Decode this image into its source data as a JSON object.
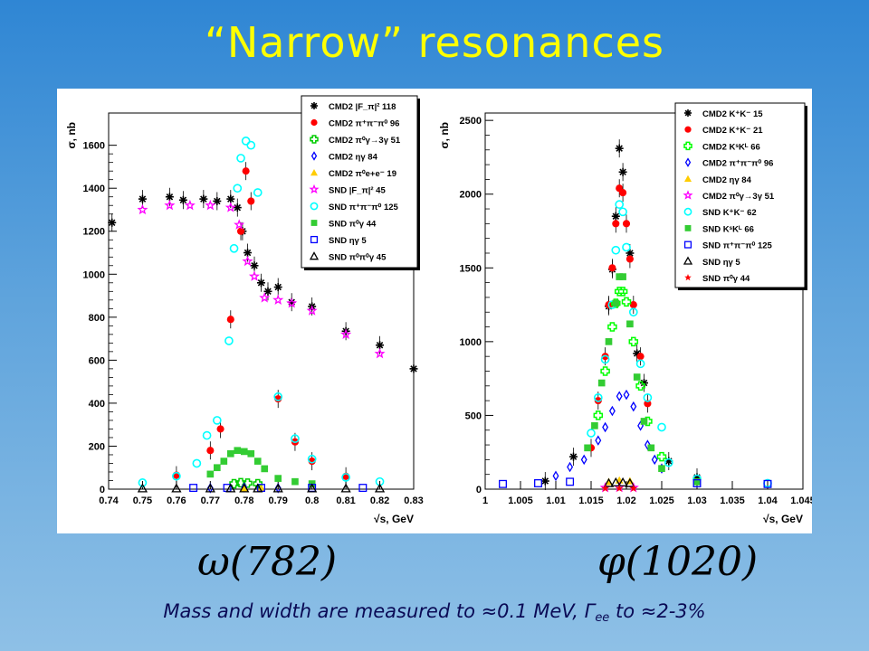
{
  "slide": {
    "title": "“Narrow” resonances",
    "caption_left": "ω(782)",
    "caption_right": "φ(1020)",
    "note_pre": "Mass and width are measured to ≈0.1 MeV, Γ",
    "note_sub": "ee",
    "note_post": " to ≈2-3%"
  },
  "chart_data": [
    {
      "type": "scatter",
      "xlabel": "√s, GeV",
      "ylabel": "σ, nb",
      "xlim": [
        0.74,
        0.83
      ],
      "ylim": [
        0,
        1750
      ],
      "xticks": [
        "0.74",
        "0.75",
        "0.76",
        "0.77",
        "0.78",
        "0.79",
        "0.8",
        "0.81",
        "0.82",
        "0.83"
      ],
      "yticks": [
        "0",
        "200",
        "400",
        "600",
        "800",
        "1000",
        "1200",
        "1400",
        "1600"
      ],
      "legend_position": "top-right",
      "series": [
        {
          "name": "CMD2 |F_π|² 118",
          "marker": "asterisk",
          "color": "#000000",
          "points": [
            [
              0.741,
              1240
            ],
            [
              0.75,
              1350
            ],
            [
              0.758,
              1360
            ],
            [
              0.762,
              1345
            ],
            [
              0.768,
              1350
            ],
            [
              0.772,
              1340
            ],
            [
              0.776,
              1350
            ],
            [
              0.778,
              1310
            ],
            [
              0.7795,
              1200
            ],
            [
              0.781,
              1100
            ],
            [
              0.783,
              1040
            ],
            [
              0.785,
              960
            ],
            [
              0.787,
              920
            ],
            [
              0.79,
              940
            ],
            [
              0.794,
              870
            ],
            [
              0.8,
              850
            ],
            [
              0.81,
              735
            ],
            [
              0.82,
              670
            ],
            [
              0.83,
              560
            ]
          ]
        },
        {
          "name": "CMD2 π⁺π⁻π⁰ 96",
          "marker": "circle",
          "color": "#ff0000",
          "points": [
            [
              0.76,
              65
            ],
            [
              0.77,
              180
            ],
            [
              0.773,
              280
            ],
            [
              0.776,
              790
            ],
            [
              0.779,
              1200
            ],
            [
              0.7805,
              1480
            ],
            [
              0.782,
              1340
            ],
            [
              0.79,
              420
            ],
            [
              0.795,
              220
            ],
            [
              0.8,
              130
            ],
            [
              0.81,
              60
            ]
          ]
        },
        {
          "name": "CMD2 π⁰γ→3γ 51",
          "marker": "cross",
          "color": "#00cc00",
          "points": [
            [
              0.777,
              25
            ],
            [
              0.779,
              30
            ],
            [
              0.781,
              28
            ],
            [
              0.784,
              25
            ]
          ]
        },
        {
          "name": "CMD2 ηγ 84",
          "marker": "diamond",
          "color": "#0000ff",
          "points": [
            [
              0.77,
              5
            ],
            [
              0.78,
              8
            ],
            [
              0.79,
              5
            ]
          ]
        },
        {
          "name": "CMD2 π⁰e+e⁻ 19",
          "marker": "triangle",
          "color": "#ffcc00",
          "points": [
            [
              0.78,
              4
            ],
            [
              0.785,
              4
            ]
          ]
        },
        {
          "name": "SND |F_π|² 45",
          "marker": "star",
          "color": "#ff00ff",
          "points": [
            [
              0.75,
              1300
            ],
            [
              0.758,
              1320
            ],
            [
              0.764,
              1320
            ],
            [
              0.77,
              1320
            ],
            [
              0.776,
              1310
            ],
            [
              0.7785,
              1230
            ],
            [
              0.781,
              1060
            ],
            [
              0.783,
              990
            ],
            [
              0.786,
              890
            ],
            [
              0.79,
              880
            ],
            [
              0.794,
              865
            ],
            [
              0.8,
              830
            ],
            [
              0.81,
              720
            ],
            [
              0.82,
              630
            ]
          ]
        },
        {
          "name": "SND π⁺π⁻π⁰ 125",
          "marker": "circle-open",
          "color": "#00ffff",
          "points": [
            [
              0.75,
              30
            ],
            [
              0.76,
              60
            ],
            [
              0.766,
              120
            ],
            [
              0.769,
              250
            ],
            [
              0.772,
              320
            ],
            [
              0.7755,
              690
            ],
            [
              0.777,
              1120
            ],
            [
              0.778,
              1400
            ],
            [
              0.779,
              1540
            ],
            [
              0.7805,
              1620
            ],
            [
              0.782,
              1600
            ],
            [
              0.784,
              1380
            ],
            [
              0.79,
              430
            ],
            [
              0.795,
              235
            ],
            [
              0.8,
              140
            ],
            [
              0.81,
              55
            ],
            [
              0.82,
              35
            ]
          ]
        },
        {
          "name": "SND π⁰γ 44",
          "marker": "square",
          "color": "#33cc33",
          "points": [
            [
              0.77,
              70
            ],
            [
              0.772,
              100
            ],
            [
              0.774,
              130
            ],
            [
              0.776,
              165
            ],
            [
              0.778,
              180
            ],
            [
              0.78,
              175
            ],
            [
              0.782,
              165
            ],
            [
              0.784,
              130
            ],
            [
              0.786,
              95
            ],
            [
              0.79,
              50
            ],
            [
              0.795,
              35
            ],
            [
              0.8,
              25
            ]
          ]
        },
        {
          "name": "SND ηγ 5",
          "marker": "square-open",
          "color": "#0000ff",
          "points": [
            [
              0.765,
              6
            ],
            [
              0.775,
              6
            ],
            [
              0.785,
              6
            ],
            [
              0.8,
              6
            ],
            [
              0.815,
              6
            ]
          ]
        },
        {
          "name": "SND π⁰π⁰γ 45",
          "marker": "triangle-open",
          "color": "#000000",
          "points": [
            [
              0.75,
              3
            ],
            [
              0.76,
              3
            ],
            [
              0.77,
              3
            ],
            [
              0.776,
              3
            ],
            [
              0.78,
              3
            ],
            [
              0.784,
              3
            ],
            [
              0.79,
              3
            ],
            [
              0.8,
              3
            ],
            [
              0.81,
              3
            ],
            [
              0.82,
              3
            ]
          ]
        }
      ]
    },
    {
      "type": "scatter",
      "xlabel": "√s, GeV",
      "ylabel": "σ, nb",
      "xlim": [
        1.0,
        1.045
      ],
      "ylim": [
        0,
        2550
      ],
      "xticks": [
        "1",
        "1.005",
        "1.01",
        "1.015",
        "1.02",
        "1.025",
        "1.03",
        "1.035",
        "1.04",
        "1.045"
      ],
      "yticks": [
        "0",
        "500",
        "1000",
        "1500",
        "2000",
        "2500"
      ],
      "legend_position": "top-right",
      "series": [
        {
          "name": "CMD2 K⁺K⁻ 15",
          "marker": "asterisk",
          "color": "#000000",
          "points": [
            [
              1.0085,
              55
            ],
            [
              1.0125,
              220
            ],
            [
              1.0175,
              1240
            ],
            [
              1.018,
              1490
            ],
            [
              1.0185,
              1850
            ],
            [
              1.019,
              2310
            ],
            [
              1.0195,
              2150
            ],
            [
              1.0205,
              1600
            ],
            [
              1.0215,
              920
            ],
            [
              1.0225,
              720
            ],
            [
              1.026,
              190
            ],
            [
              1.03,
              80
            ]
          ]
        },
        {
          "name": "CMD2 K⁺K⁻ 21",
          "marker": "circle",
          "color": "#ff0000",
          "points": [
            [
              1.015,
              280
            ],
            [
              1.016,
              600
            ],
            [
              1.017,
              900
            ],
            [
              1.0175,
              1250
            ],
            [
              1.018,
              1500
            ],
            [
              1.0185,
              1800
            ],
            [
              1.019,
              2040
            ],
            [
              1.0195,
              2010
            ],
            [
              1.02,
              1800
            ],
            [
              1.0205,
              1560
            ],
            [
              1.021,
              1250
            ],
            [
              1.022,
              900
            ],
            [
              1.023,
              580
            ]
          ]
        },
        {
          "name": "CMD2 KˢKᴸ 66",
          "marker": "cross",
          "color": "#00ff00",
          "points": [
            [
              1.016,
              500
            ],
            [
              1.017,
              800
            ],
            [
              1.018,
              1100
            ],
            [
              1.0185,
              1260
            ],
            [
              1.019,
              1340
            ],
            [
              1.0195,
              1340
            ],
            [
              1.02,
              1270
            ],
            [
              1.021,
              1000
            ],
            [
              1.022,
              700
            ],
            [
              1.023,
              460
            ],
            [
              1.025,
              220
            ]
          ]
        },
        {
          "name": "CMD2 π⁺π⁻π⁰ 96",
          "marker": "diamond",
          "color": "#0000ff",
          "points": [
            [
              1.01,
              90
            ],
            [
              1.012,
              150
            ],
            [
              1.014,
              200
            ],
            [
              1.016,
              330
            ],
            [
              1.017,
              420
            ],
            [
              1.018,
              530
            ],
            [
              1.019,
              630
            ],
            [
              1.02,
              640
            ],
            [
              1.021,
              560
            ],
            [
              1.022,
              430
            ],
            [
              1.023,
              300
            ],
            [
              1.024,
              200
            ],
            [
              1.025,
              140
            ]
          ]
        },
        {
          "name": "CMD2 ηγ 84",
          "marker": "triangle",
          "color": "#ffcc00",
          "points": [
            [
              1.0175,
              50
            ],
            [
              1.019,
              60
            ],
            [
              1.0205,
              55
            ]
          ]
        },
        {
          "name": "CMD2 π⁰γ→3γ 51",
          "marker": "star",
          "color": "#ff00ff",
          "points": [
            [
              1.017,
              10
            ],
            [
              1.019,
              12
            ],
            [
              1.021,
              10
            ]
          ]
        },
        {
          "name": "SND K⁺K⁻ 62",
          "marker": "circle-open",
          "color": "#00ffff",
          "points": [
            [
              1.015,
              380
            ],
            [
              1.016,
              620
            ],
            [
              1.017,
              880
            ],
            [
              1.018,
              1250
            ],
            [
              1.0185,
              1620
            ],
            [
              1.019,
              1930
            ],
            [
              1.0195,
              1880
            ],
            [
              1.02,
              1640
            ],
            [
              1.021,
              1200
            ],
            [
              1.022,
              850
            ],
            [
              1.023,
              620
            ],
            [
              1.025,
              420
            ],
            [
              1.026,
              180
            ],
            [
              1.03,
              70
            ],
            [
              1.04,
              40
            ]
          ]
        },
        {
          "name": "SND KˢKᴸ 66",
          "marker": "square",
          "color": "#33cc33",
          "points": [
            [
              1.0145,
              280
            ],
            [
              1.0155,
              430
            ],
            [
              1.0165,
              720
            ],
            [
              1.0175,
              1000
            ],
            [
              1.0185,
              1260
            ],
            [
              1.019,
              1440
            ],
            [
              1.0195,
              1440
            ],
            [
              1.0205,
              1120
            ],
            [
              1.0215,
              760
            ],
            [
              1.0225,
              460
            ],
            [
              1.0235,
              280
            ],
            [
              1.025,
              140
            ],
            [
              1.03,
              50
            ]
          ]
        },
        {
          "name": "SND π⁺π⁻π⁰ 125",
          "marker": "square-open",
          "color": "#0000ff",
          "points": [
            [
              1.0025,
              35
            ],
            [
              1.0075,
              40
            ],
            [
              1.012,
              50
            ],
            [
              1.03,
              40
            ],
            [
              1.04,
              35
            ]
          ]
        },
        {
          "name": "SND ηγ 5",
          "marker": "triangle-open",
          "color": "#000000",
          "points": [
            [
              1.0175,
              40
            ],
            [
              1.0185,
              45
            ],
            [
              1.0195,
              45
            ],
            [
              1.0205,
              40
            ]
          ]
        },
        {
          "name": "SND π⁰γ 44",
          "marker": "red-star",
          "color": "#ff0000",
          "points": [
            [
              1.017,
              5
            ],
            [
              1.019,
              5
            ],
            [
              1.021,
              5
            ]
          ]
        }
      ]
    }
  ]
}
